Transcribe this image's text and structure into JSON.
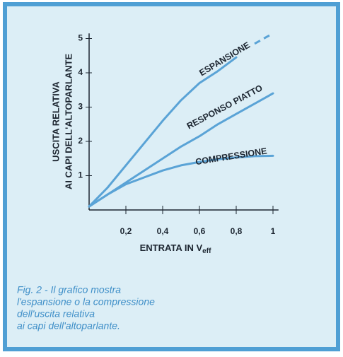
{
  "chart_data": {
    "type": "line",
    "xlabel": {
      "text": "ENTRATA IN V",
      "subscript": "eff"
    },
    "ylabel": [
      "USCITA RELATIVA",
      "AI CAPI DELL'ALTOPARLANTE"
    ],
    "x": [
      0,
      0.1,
      0.2,
      0.3,
      0.4,
      0.5,
      0.6,
      0.7,
      0.8,
      0.9,
      1
    ],
    "series": [
      {
        "name": "ESPANSIONE",
        "color": "#5aa3d6",
        "values": [
          0.1,
          0.65,
          1.3,
          1.95,
          2.6,
          3.2,
          3.7,
          4.05,
          4.45,
          null,
          null
        ]
      },
      {
        "color": "#5aa3d6",
        "dashed": true,
        "values": [
          null,
          null,
          null,
          null,
          null,
          null,
          null,
          null,
          null,
          4.85,
          5.15
        ]
      },
      {
        "name": "RESPONSO PIATTO",
        "color": "#5aa3d6",
        "values": [
          0.1,
          0.45,
          0.8,
          1.15,
          1.5,
          1.85,
          2.15,
          2.5,
          2.8,
          3.1,
          3.4
        ]
      },
      {
        "name": "COMPRESSIONE",
        "color": "#5aa3d6",
        "values": [
          0.1,
          0.45,
          0.75,
          0.95,
          1.15,
          1.3,
          1.4,
          1.48,
          1.53,
          1.57,
          1.58
        ]
      }
    ],
    "xlim": [
      0,
      1.03
    ],
    "ylim": [
      0,
      5.15
    ],
    "xticks": [
      {
        "value": 0.2,
        "label": "0,2"
      },
      {
        "value": 0.4,
        "label": "0,4"
      },
      {
        "value": 0.6,
        "label": "0,6"
      },
      {
        "value": 0.8,
        "label": "0,8"
      },
      1
    ],
    "yticks": [
      1,
      2,
      3,
      4,
      5
    ]
  },
  "caption": [
    "Fig. 2 - Il grafico mostra",
    "l'espansione o la compressione",
    "dell'uscita relativa",
    "ai capi dell'altoparlante."
  ]
}
